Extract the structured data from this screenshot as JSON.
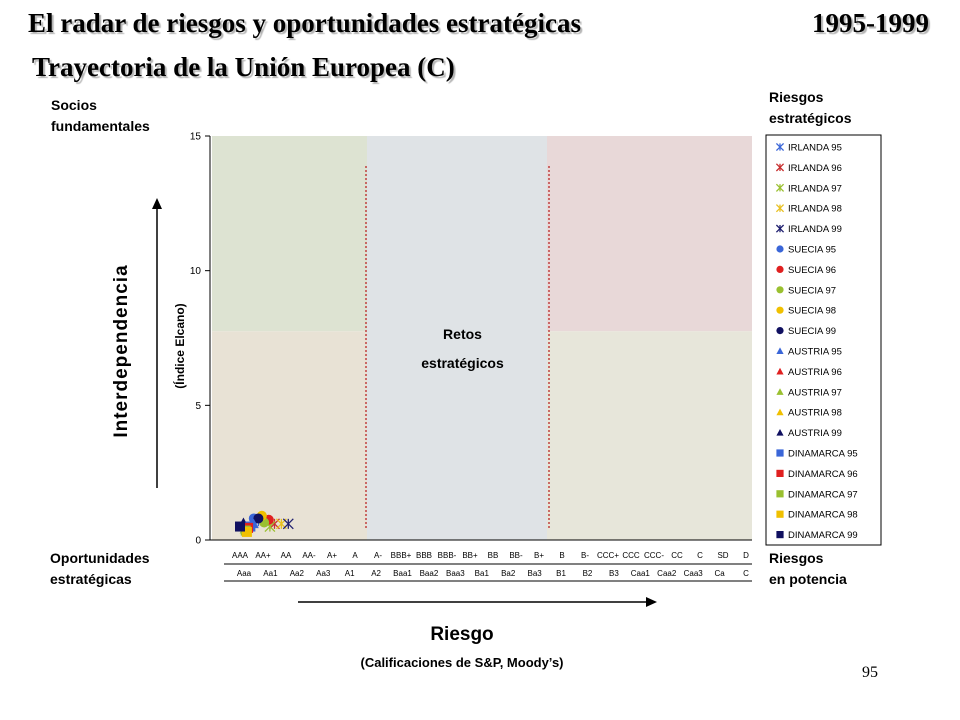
{
  "header": {
    "title": "El radar de riesgos y oportunidades estratégicas",
    "years": "1995-1999",
    "subtitle": "Trayectoria de la Unión Europea (C)"
  },
  "corners": {
    "top_left": [
      "Socios",
      "fundamentales"
    ],
    "top_right": [
      "Riesgos",
      "estratégicos"
    ],
    "bottom_left": [
      "Oportunidades",
      "estratégicas"
    ],
    "bottom_right": [
      "Riesgos",
      "en potencia"
    ]
  },
  "center_zone": [
    "Retos",
    "estratégicos"
  ],
  "axes": {
    "y_title": "Interdependencia",
    "y_subtitle": "(Índice Elcano)",
    "x_title": "Riesgo",
    "x_subtitle": "(Calificaciones de S&P, Moody’s)"
  },
  "page_number": "95",
  "chart_data": {
    "type": "scatter",
    "ylim": [
      0,
      15
    ],
    "yticks": [
      0,
      5,
      10,
      15
    ],
    "x_categories_sp": [
      "AAA",
      "AA+",
      "AA",
      "AA-",
      "A+",
      "A",
      "A-",
      "BBB+",
      "BBB",
      "BBB-",
      "BB+",
      "BB",
      "BB-",
      "B+",
      "B",
      "B-",
      "CCC+",
      "CCC",
      "CCC-",
      "CC",
      "C",
      "SD",
      "D"
    ],
    "x_categories_moodys": [
      "Aaa",
      "Aa1",
      "Aa2",
      "Aa3",
      "A1",
      "A2",
      "Baa1",
      "Baa2",
      "Baa3",
      "Ba1",
      "Ba2",
      "Ba3",
      "B1",
      "B2",
      "B3",
      "Caa1",
      "Caa2",
      "Caa3",
      "Ca",
      "C"
    ],
    "zone_colors": {
      "top_left": "#dde3d2",
      "bottom_left": "#e8e2d5",
      "center": "#dfe3e6",
      "top_right": "#e8d8d8",
      "bottom_right": "#e7e6da",
      "divider": "#c04040"
    },
    "series": [
      {
        "name": "IRLANDA 95",
        "marker": "asterisk",
        "color": "#3a66d8",
        "points": [
          [
            0.8,
            0.7
          ]
        ]
      },
      {
        "name": "IRLANDA 96",
        "marker": "asterisk",
        "color": "#c83030",
        "points": [
          [
            1.5,
            0.6
          ]
        ]
      },
      {
        "name": "IRLANDA 97",
        "marker": "asterisk",
        "color": "#9ac030",
        "points": [
          [
            1.3,
            0.5
          ]
        ]
      },
      {
        "name": "IRLANDA 98",
        "marker": "asterisk",
        "color": "#e8c020",
        "points": [
          [
            1.8,
            0.6
          ]
        ]
      },
      {
        "name": "IRLANDA 99",
        "marker": "asterisk",
        "color": "#202070",
        "points": [
          [
            2.1,
            0.6
          ]
        ]
      },
      {
        "name": "SUECIA 95",
        "marker": "circle",
        "color": "#3a66d8",
        "points": [
          [
            0.6,
            0.8
          ]
        ]
      },
      {
        "name": "SUECIA 96",
        "marker": "circle",
        "color": "#e02020",
        "points": [
          [
            1.25,
            0.75
          ]
        ]
      },
      {
        "name": "SUECIA 97",
        "marker": "circle",
        "color": "#9ac030",
        "points": [
          [
            1.05,
            0.65
          ]
        ]
      },
      {
        "name": "SUECIA 98",
        "marker": "circle",
        "color": "#f0c000",
        "points": [
          [
            0.95,
            0.9
          ]
        ]
      },
      {
        "name": "SUECIA 99",
        "marker": "circle",
        "color": "#101060",
        "points": [
          [
            0.8,
            0.8
          ]
        ]
      },
      {
        "name": "AUSTRIA 95",
        "marker": "triangle",
        "color": "#3a66d8",
        "points": [
          [
            0.6,
            0.6
          ]
        ]
      },
      {
        "name": "AUSTRIA 96",
        "marker": "triangle",
        "color": "#e02020",
        "points": [
          [
            0.4,
            0.5
          ]
        ]
      },
      {
        "name": "AUSTRIA 97",
        "marker": "triangle",
        "color": "#9ac030",
        "points": [
          [
            0.2,
            0.4
          ]
        ]
      },
      {
        "name": "AUSTRIA 98",
        "marker": "triangle",
        "color": "#f0c000",
        "points": [
          [
            0.3,
            0.45
          ]
        ]
      },
      {
        "name": "AUSTRIA 99",
        "marker": "triangle",
        "color": "#101060",
        "points": [
          [
            0.15,
            0.65
          ]
        ]
      },
      {
        "name": "DINAMARCA 95",
        "marker": "square",
        "color": "#3a66d8",
        "points": [
          [
            0.45,
            0.5
          ]
        ]
      },
      {
        "name": "DINAMARCA 96",
        "marker": "square",
        "color": "#e02020",
        "points": [
          [
            0.35,
            0.45
          ]
        ]
      },
      {
        "name": "DINAMARCA 97",
        "marker": "square",
        "color": "#9ac030",
        "points": [
          [
            0.25,
            0.35
          ]
        ]
      },
      {
        "name": "DINAMARCA 98",
        "marker": "square",
        "color": "#f0c000",
        "points": [
          [
            0.3,
            0.3
          ]
        ]
      },
      {
        "name": "DINAMARCA 99",
        "marker": "square",
        "color": "#101060",
        "points": [
          [
            0.0,
            0.5
          ]
        ]
      }
    ]
  }
}
